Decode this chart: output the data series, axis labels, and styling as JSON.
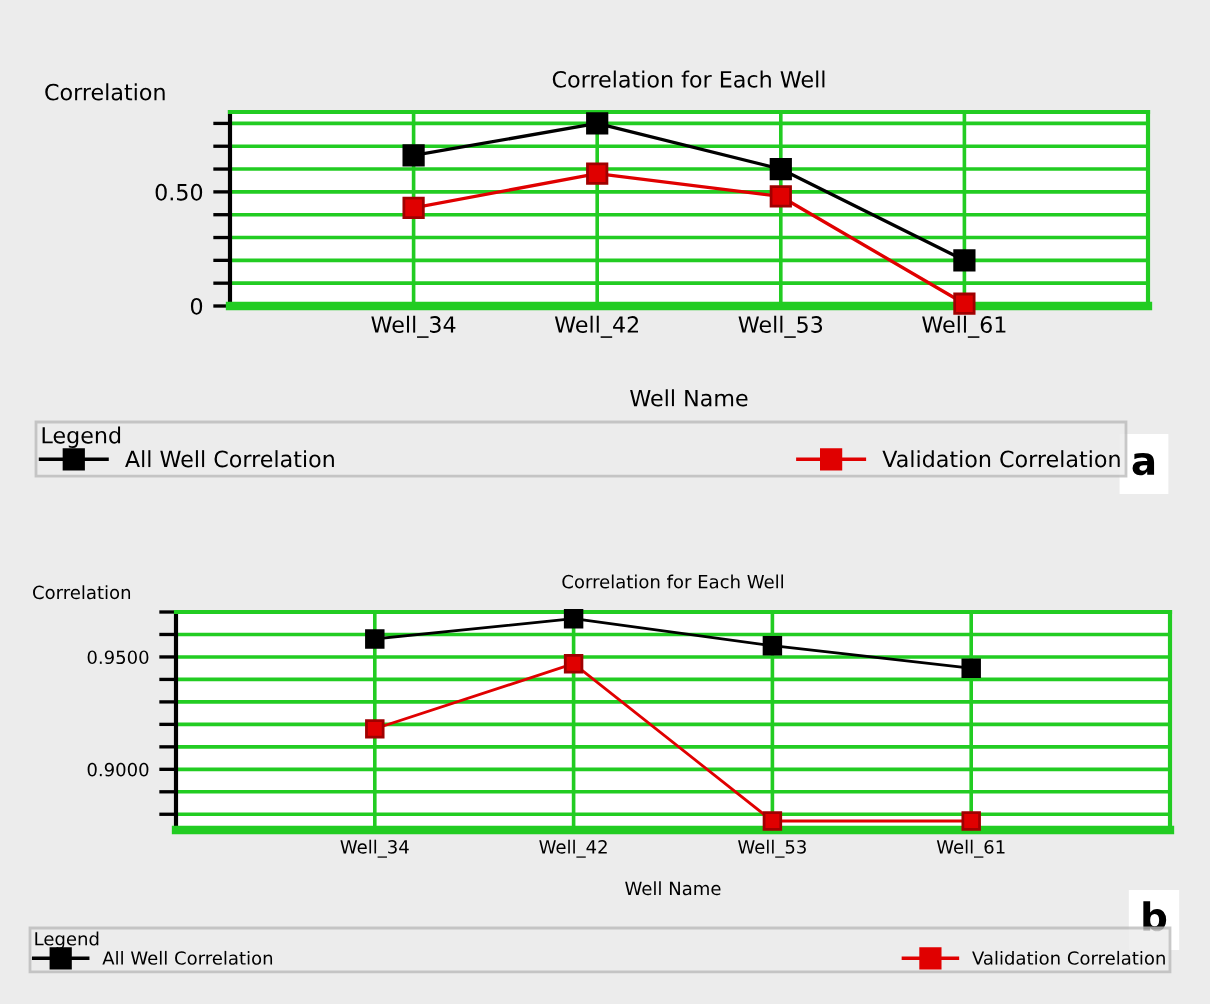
{
  "chart_data": [
    {
      "type": "line",
      "title": "Correlation for Each Well",
      "ylabel": "Correlation",
      "xlabel": "Well Name",
      "legend_title": "Legend",
      "legend": "bottom",
      "grid": true,
      "marker": "square",
      "line_style": "solid",
      "categories": [
        "Well_34",
        "Well_42",
        "Well_53",
        "Well_61"
      ],
      "series": [
        {
          "name": "All Well Correlation",
          "color": "#000000",
          "values": [
            0.66,
            0.8,
            0.6,
            0.2
          ]
        },
        {
          "name": "Validation Correlation",
          "color": "#e00000",
          "values": [
            0.43,
            0.58,
            0.48,
            0.01
          ]
        }
      ],
      "ylim": [
        0,
        0.85
      ],
      "yticks": [
        0,
        {
          "value": 0.1,
          "label": null
        },
        {
          "value": 0.2,
          "label": null
        },
        {
          "value": 0.3,
          "label": null
        },
        {
          "value": 0.4,
          "label": null
        },
        {
          "value": 0.5,
          "label": "0.50"
        },
        {
          "value": 0.6,
          "label": null
        },
        {
          "value": 0.7,
          "label": null
        },
        {
          "value": 0.8,
          "label": null
        }
      ],
      "annotations": [
        "a"
      ]
    },
    {
      "type": "line",
      "title": "Correlation for Each Well",
      "ylabel": "Correlation",
      "xlabel": "Well Name",
      "legend_title": "Legend",
      "legend": "bottom",
      "grid": true,
      "marker": "square",
      "line_style": "solid",
      "categories": [
        "Well_34",
        "Well_42",
        "Well_53",
        "Well_61"
      ],
      "series": [
        {
          "name": "All Well Correlation",
          "color": "#000000",
          "values": [
            0.958,
            0.967,
            0.955,
            0.945
          ]
        },
        {
          "name": "Validation Correlation",
          "color": "#e00000",
          "values": [
            0.918,
            0.947,
            0.877,
            0.877
          ]
        }
      ],
      "ylim": [
        0.873,
        0.97
      ],
      "yticks": [
        {
          "value": 0.88,
          "label": null
        },
        {
          "value": 0.89,
          "label": null
        },
        {
          "value": 0.9,
          "label": "0.9000"
        },
        {
          "value": 0.91,
          "label": null
        },
        {
          "value": 0.92,
          "label": null
        },
        {
          "value": 0.93,
          "label": null
        },
        {
          "value": 0.94,
          "label": null
        },
        {
          "value": 0.95,
          "label": "0.9500"
        },
        {
          "value": 0.96,
          "label": null
        },
        {
          "value": 0.97,
          "label": null
        }
      ],
      "annotations": [
        "b"
      ]
    }
  ]
}
